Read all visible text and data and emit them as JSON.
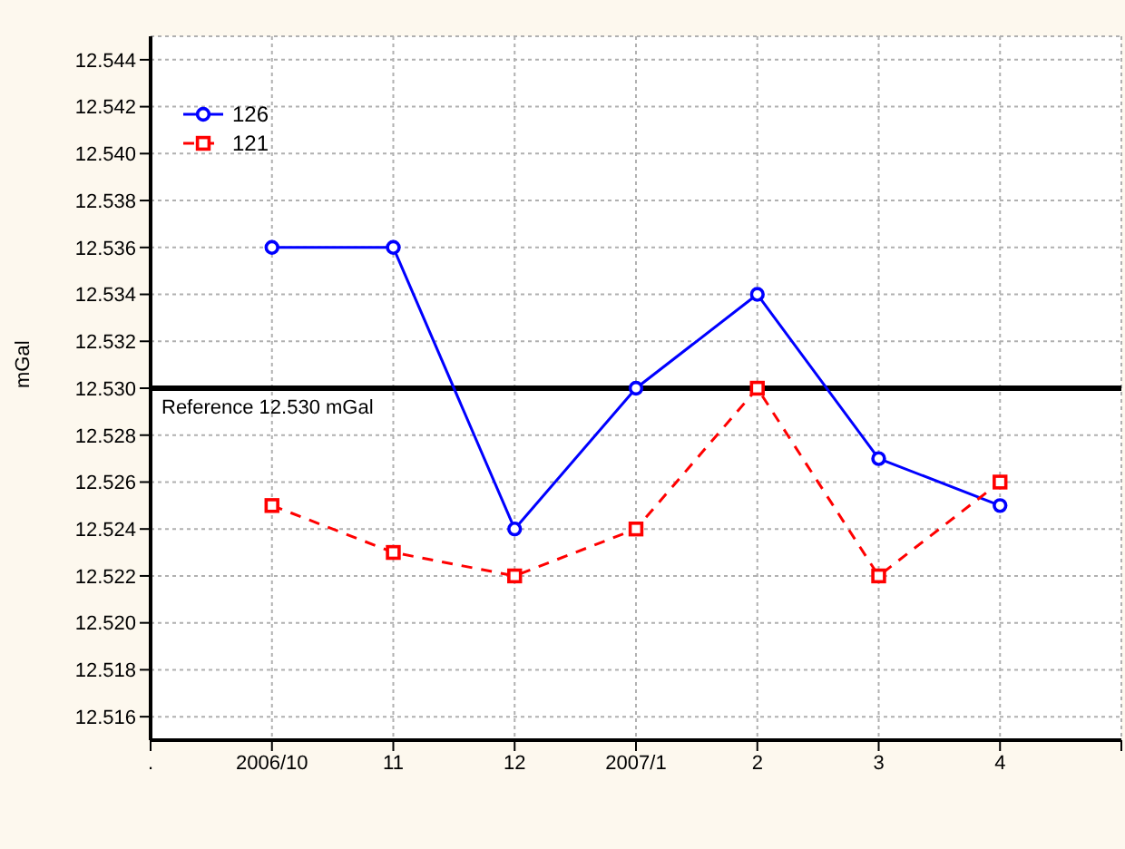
{
  "chart_data": {
    "type": "line",
    "ylabel": "mGal",
    "categories": [
      ".",
      "2006/10",
      "11",
      "12",
      "2007/1",
      "2",
      "3",
      "4",
      null
    ],
    "series": [
      {
        "name": "126",
        "color": "#0000ff",
        "marker": "circle",
        "line_style": "solid",
        "values": [
          null,
          12.536,
          12.536,
          12.524,
          12.53,
          12.534,
          12.527,
          12.525,
          null
        ]
      },
      {
        "name": "121",
        "color": "#ff0000",
        "marker": "square",
        "line_style": "dashed",
        "values": [
          null,
          12.525,
          12.523,
          12.522,
          12.524,
          12.53,
          12.522,
          12.526,
          null
        ]
      }
    ],
    "ylim": [
      12.515,
      12.545
    ],
    "yticks": [
      12.516,
      12.518,
      {
        "value": 12.52,
        "label": "12.520"
      },
      12.522,
      12.524,
      12.526,
      12.528,
      {
        "value": 12.53,
        "label": "12.530"
      },
      12.532,
      12.534,
      12.536,
      12.538,
      {
        "value": 12.54,
        "label": "12.540"
      },
      12.542,
      12.544
    ],
    "ref_lines": [
      {
        "axis": "y",
        "value": 12.53,
        "label": "Reference 12.530 mGal",
        "color": "#000000"
      }
    ],
    "grid": true,
    "legend": "top left"
  }
}
